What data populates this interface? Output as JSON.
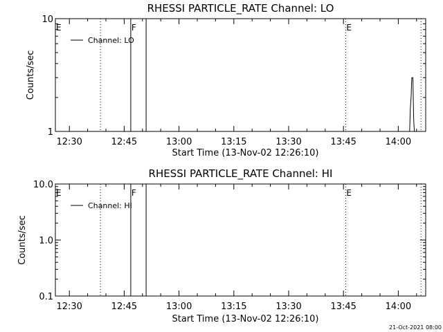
{
  "chart_data": [
    {
      "type": "line",
      "title": "RHESSI PARTICLE_RATE Channel: LO",
      "xlabel": "Start Time (13-Nov-02 12:26:10)",
      "ylabel": "Counts/sec",
      "x_ticks": [
        "12:30",
        "12:45",
        "13:00",
        "13:15",
        "13:30",
        "13:45",
        "14:00"
      ],
      "x_tick_minutes": [
        30,
        45,
        60,
        75,
        90,
        105,
        120
      ],
      "xlim_minutes": [
        26.17,
        127.5
      ],
      "yscale": "log",
      "ylim": [
        1,
        10
      ],
      "y_ticks": [
        "1",
        "10"
      ],
      "y_tick_values": [
        1,
        10
      ],
      "legend": "top-left",
      "series": [
        {
          "name": "Channel: LO",
          "color": "#000000",
          "x_minutes": [
            123.1,
            123.3,
            123.5,
            123.7,
            124.0,
            124.2,
            124.4
          ],
          "values": [
            1,
            1.6,
            2.0,
            3.0,
            3.0,
            1.3,
            1
          ]
        }
      ],
      "flags": [
        {
          "label": "E",
          "x_minutes": 26.17,
          "style": "none"
        },
        {
          "label": "",
          "x_minutes": 38.5,
          "style": "dotted"
        },
        {
          "label": "F",
          "x_minutes": 46.8,
          "style": "solid"
        },
        {
          "label": "",
          "x_minutes": 51.0,
          "style": "solid"
        },
        {
          "label": "E",
          "x_minutes": 105.6,
          "style": "dotted"
        },
        {
          "label": "",
          "x_minutes": 126.2,
          "style": "dotted"
        }
      ]
    },
    {
      "type": "line",
      "title": "RHESSI PARTICLE_RATE Channel: HI",
      "xlabel": "Start Time (13-Nov-02 12:26:10)",
      "ylabel": "Counts/sec",
      "x_ticks": [
        "12:30",
        "12:45",
        "13:00",
        "13:15",
        "13:30",
        "13:45",
        "14:00"
      ],
      "x_tick_minutes": [
        30,
        45,
        60,
        75,
        90,
        105,
        120
      ],
      "xlim_minutes": [
        26.17,
        127.5
      ],
      "yscale": "log",
      "ylim": [
        0.1,
        10
      ],
      "y_ticks": [
        "0.1",
        "1.0",
        "10.0"
      ],
      "y_tick_values": [
        0.1,
        1,
        10
      ],
      "legend": "top-left",
      "series": [
        {
          "name": "Channel: HI",
          "color": "#000000",
          "x_minutes": [],
          "values": []
        }
      ],
      "flags": [
        {
          "label": "E",
          "x_minutes": 26.17,
          "style": "none"
        },
        {
          "label": "",
          "x_minutes": 38.5,
          "style": "dotted"
        },
        {
          "label": "F",
          "x_minutes": 46.8,
          "style": "solid"
        },
        {
          "label": "",
          "x_minutes": 51.0,
          "style": "solid"
        },
        {
          "label": "E",
          "x_minutes": 105.6,
          "style": "dotted"
        },
        {
          "label": "",
          "x_minutes": 126.2,
          "style": "dotted"
        }
      ]
    }
  ],
  "footer": {
    "timestamp": "21-Oct-2021 08:00"
  }
}
